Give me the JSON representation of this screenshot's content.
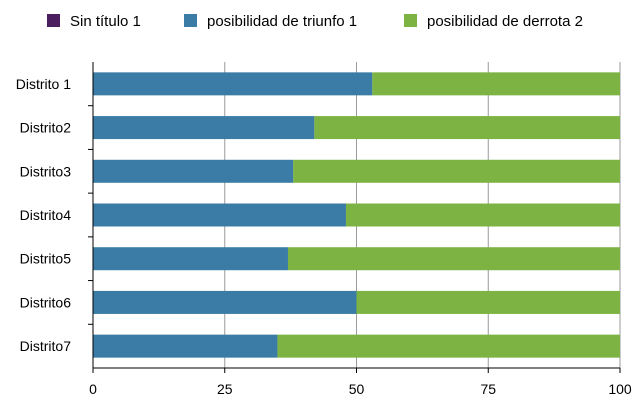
{
  "chart_data": {
    "type": "bar",
    "orientation": "horizontal",
    "stacked": true,
    "categories": [
      "Distrito 1",
      "Distrito2",
      "Distrito3",
      "Distrito4",
      "Distrito5",
      "Distrito6",
      "Distrito7"
    ],
    "series": [
      {
        "name": "Sin título 1",
        "color": "#4b1f5f",
        "values": [
          0,
          0,
          0,
          0,
          0,
          0,
          0
        ]
      },
      {
        "name": "posibilidad de triunfo 1",
        "color": "#3a7ca5",
        "values": [
          53,
          42,
          38,
          48,
          37,
          50,
          35
        ]
      },
      {
        "name": "posibilidad de derrota 2",
        "color": "#7cb342",
        "values": [
          47,
          58,
          62,
          52,
          63,
          50,
          65
        ]
      }
    ],
    "x_ticks": [
      0,
      25,
      50,
      75,
      100
    ],
    "xlim": [
      0,
      100
    ],
    "grid": true,
    "legend_position": "top"
  }
}
